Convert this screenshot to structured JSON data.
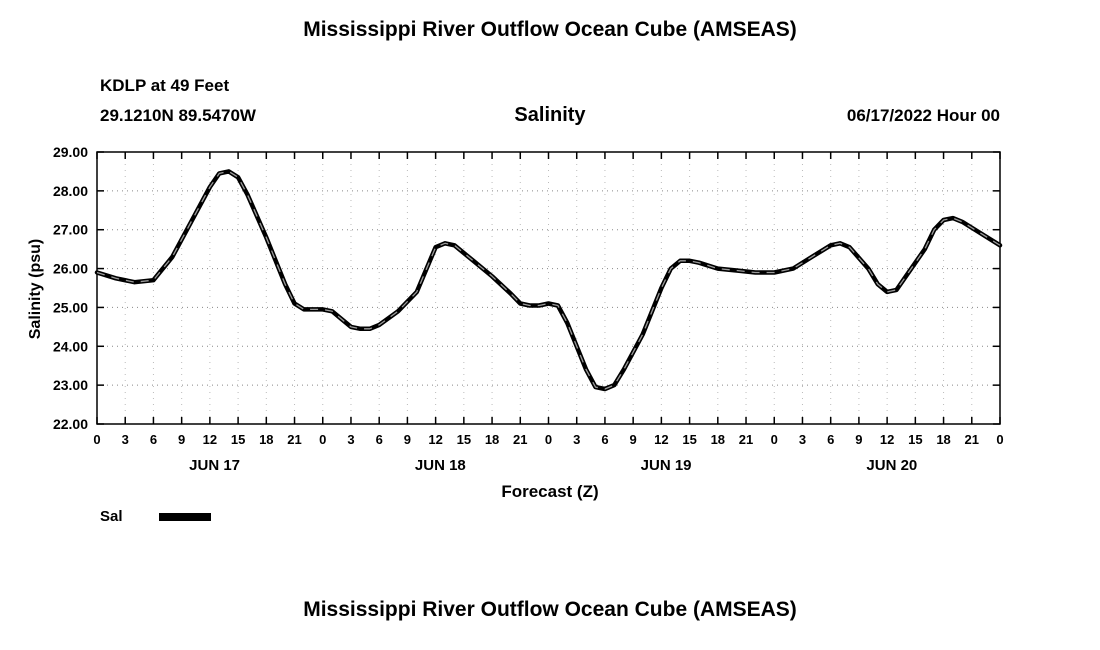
{
  "titles": {
    "top": "Mississippi River Outflow Ocean Cube (AMSEAS)",
    "bottom": "Mississippi River Outflow Ocean Cube (AMSEAS)"
  },
  "header": {
    "station": "KDLP at 49 Feet",
    "coords": "29.1210N  89.5470W",
    "datetime": "06/17/2022 Hour 00"
  },
  "chart_data": {
    "type": "line",
    "title": "Salinity",
    "xlabel": "Forecast (Z)",
    "ylabel": "Salinity (psu)",
    "ylim": [
      22,
      29
    ],
    "ytick_labels": [
      "22.00",
      "23.00",
      "24.00",
      "25.00",
      "26.00",
      "27.00",
      "28.00",
      "29.00"
    ],
    "x_total_hours": 96,
    "x_tick_interval": 3,
    "x_tick_labels": [
      "0",
      "3",
      "6",
      "9",
      "12",
      "15",
      "18",
      "21",
      "0",
      "3",
      "6",
      "9",
      "12",
      "15",
      "18",
      "21",
      "0",
      "3",
      "6",
      "9",
      "12",
      "15",
      "18",
      "21",
      "0",
      "3",
      "6",
      "9",
      "12",
      "15",
      "18",
      "21",
      "0"
    ],
    "day_labels": [
      {
        "label": "JUN 17",
        "center_hour": 12.5
      },
      {
        "label": "JUN 18",
        "center_hour": 36.5
      },
      {
        "label": "JUN 19",
        "center_hour": 60.5
      },
      {
        "label": "JUN 20",
        "center_hour": 84.5
      }
    ],
    "legend": [
      {
        "name": "Sal",
        "color": "#000000"
      }
    ],
    "line_color": "#000000",
    "line_width": 4.5,
    "overlay_dash_color": "#9a9a9a",
    "grid_color": "#888888",
    "series": {
      "x": [
        0,
        2,
        4,
        6,
        8,
        10,
        12,
        13,
        14,
        15,
        16,
        18,
        20,
        21,
        22,
        24,
        25,
        26,
        27,
        28,
        29,
        30,
        32,
        34,
        36,
        37,
        38,
        40,
        42,
        44,
        45,
        46,
        47,
        48,
        49,
        50,
        51,
        52,
        53,
        54,
        55,
        56,
        58,
        60,
        61,
        62,
        63,
        64,
        66,
        68,
        70,
        72,
        74,
        76,
        78,
        79,
        80,
        82,
        83,
        84,
        85,
        86,
        88,
        89,
        90,
        91,
        92,
        94,
        96
      ],
      "y": [
        25.9,
        25.75,
        25.65,
        25.7,
        26.3,
        27.2,
        28.1,
        28.45,
        28.5,
        28.35,
        27.9,
        26.8,
        25.6,
        25.1,
        24.95,
        24.95,
        24.9,
        24.7,
        24.5,
        24.45,
        24.45,
        24.55,
        24.9,
        25.4,
        26.55,
        26.65,
        26.6,
        26.2,
        25.8,
        25.35,
        25.1,
        25.05,
        25.05,
        25.1,
        25.05,
        24.6,
        24.0,
        23.4,
        22.95,
        22.9,
        23.0,
        23.4,
        24.3,
        25.5,
        26.0,
        26.2,
        26.2,
        26.15,
        26.0,
        25.95,
        25.9,
        25.9,
        26.0,
        26.3,
        26.6,
        26.65,
        26.55,
        26.0,
        25.6,
        25.4,
        25.45,
        25.8,
        26.5,
        27.0,
        27.25,
        27.3,
        27.2,
        26.9,
        26.6
      ]
    }
  }
}
